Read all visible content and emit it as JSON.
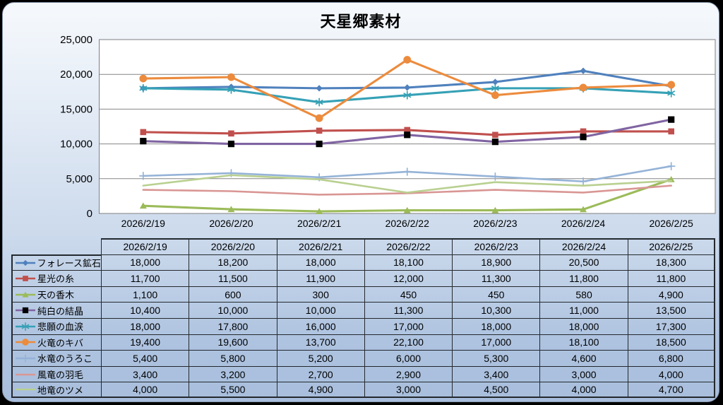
{
  "page": {
    "title": "天星郷素材"
  },
  "chart_data": {
    "type": "line",
    "title": "天星郷素材",
    "categories": [
      "2026/2/19",
      "2026/2/20",
      "2026/2/21",
      "2026/2/22",
      "2026/2/23",
      "2026/2/24",
      "2026/2/25"
    ],
    "series": [
      {
        "name": "フォレース鉱石",
        "values": [
          18000,
          18200,
          18000,
          18100,
          18900,
          20500,
          18300
        ],
        "color": "#4F81BD",
        "marker": "diamond",
        "marker_color": "#4F81BD"
      },
      {
        "name": "星光の糸",
        "values": [
          11700,
          11500,
          11900,
          12000,
          11300,
          11800,
          11800
        ],
        "color": "#C0504D",
        "marker": "square",
        "marker_color": "#C0504D"
      },
      {
        "name": "天の香木",
        "values": [
          1100,
          600,
          300,
          450,
          450,
          580,
          4900
        ],
        "color": "#9BBB59",
        "marker": "triangle",
        "marker_color": "#9BBB59"
      },
      {
        "name": "純白の結晶",
        "values": [
          10400,
          10000,
          10000,
          11300,
          10300,
          11000,
          13500
        ],
        "color": "#8064A2",
        "marker": "black-square",
        "marker_color": "#000000"
      },
      {
        "name": "悲願の血涙",
        "values": [
          18000,
          17800,
          16000,
          17000,
          18000,
          18000,
          17300
        ],
        "color": "#35A1B6",
        "marker": "asterisk",
        "marker_color": "#35A1B6"
      },
      {
        "name": "火竜のキバ",
        "values": [
          19400,
          19600,
          13700,
          22100,
          17000,
          18100,
          18500
        ],
        "color": "#EC8B3D",
        "marker": "circle",
        "marker_color": "#EC8B3D"
      },
      {
        "name": "水竜のうろこ",
        "values": [
          5400,
          5800,
          5200,
          6000,
          5300,
          4600,
          6800
        ],
        "color": "#95B3D7",
        "marker": "plus",
        "marker_color": "#95B3D7"
      },
      {
        "name": "風竜の羽毛",
        "values": [
          3400,
          3200,
          2700,
          2900,
          3400,
          3000,
          4000
        ],
        "color": "#D99694",
        "marker": "none",
        "marker_color": "#D99694"
      },
      {
        "name": "地竜のツメ",
        "values": [
          4000,
          5500,
          4900,
          3000,
          4500,
          4000,
          4700
        ],
        "color": "#B9D090",
        "marker": "none",
        "marker_color": "#B9D090"
      }
    ],
    "ylim": [
      0,
      25000
    ],
    "y_tick_step": 5000,
    "y_tick_labels": [
      "0",
      "5,000",
      "10,000",
      "15,000",
      "20,000",
      "25,000"
    ],
    "grid": true,
    "gridline_color": "#868686",
    "plot_background": "#FFFFFF",
    "legend_position": "left-column-of-data-table",
    "data_table_shown": true
  }
}
